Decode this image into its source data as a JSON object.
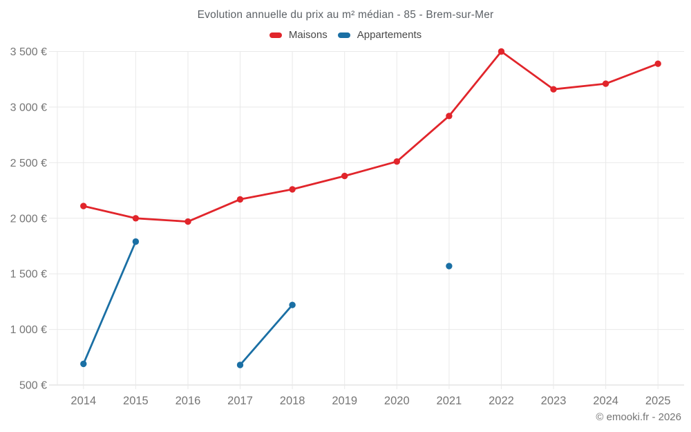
{
  "footer": {
    "credit": "© emooki.fr - 2026"
  },
  "chart_data": {
    "type": "line",
    "title": "Evolution annuelle du prix au m² médian - 85 - Brem-sur-Mer",
    "categories": [
      "2014",
      "2015",
      "2016",
      "2017",
      "2018",
      "2019",
      "2020",
      "2021",
      "2022",
      "2023",
      "2024",
      "2025"
    ],
    "series": [
      {
        "name": "Maisons",
        "color": "#e1252b",
        "values": [
          2110,
          2000,
          1970,
          2170,
          2260,
          2380,
          2510,
          2920,
          3500,
          3160,
          3210,
          3390
        ]
      },
      {
        "name": "Appartements",
        "color": "#1a6fa4",
        "values": [
          690,
          1790,
          null,
          680,
          1220,
          null,
          null,
          1570,
          null,
          null,
          null,
          null
        ]
      }
    ],
    "xlabel": "",
    "ylabel": "",
    "ylim": [
      500,
      3500
    ],
    "yticks": [
      500,
      1000,
      1500,
      2000,
      2500,
      3000,
      3500
    ],
    "ytick_labels": [
      "500 €",
      "1 000 €",
      "1 500 €",
      "2 000 €",
      "2 500 €",
      "3 000 €",
      "3 500 €"
    ],
    "grid": true,
    "legend_position": "top",
    "colors": {
      "grid_line": "#e9e9e9",
      "axis_line": "#d4d4d4",
      "tick_label": "#757575"
    }
  }
}
